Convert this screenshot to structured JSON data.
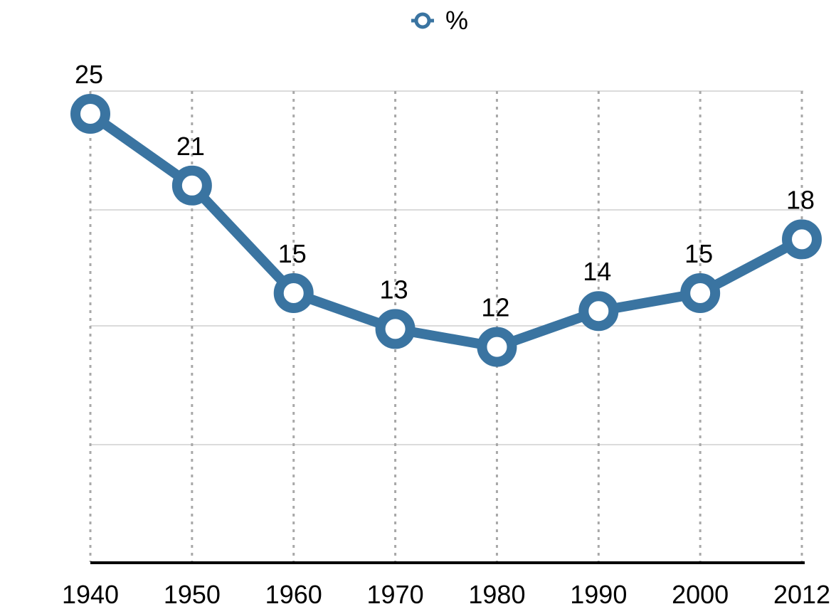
{
  "chart_data": {
    "type": "line",
    "categories": [
      "1940",
      "1950",
      "1960",
      "1970",
      "1980",
      "1990",
      "2000",
      "2012"
    ],
    "series": [
      {
        "name": "%",
        "values": [
          25,
          21,
          15,
          13,
          12,
          14,
          15,
          18
        ],
        "color": "#3a74a1"
      }
    ],
    "data_labels": [
      "25",
      "21",
      "15",
      "13",
      "12",
      "14",
      "15",
      "18"
    ],
    "ylim": [
      0,
      26
    ],
    "grid": {
      "horizontal": true,
      "vertical": true,
      "vertical_style": "dotted"
    },
    "legend_position": "top-center",
    "title": "",
    "xlabel": "",
    "ylabel": ""
  }
}
